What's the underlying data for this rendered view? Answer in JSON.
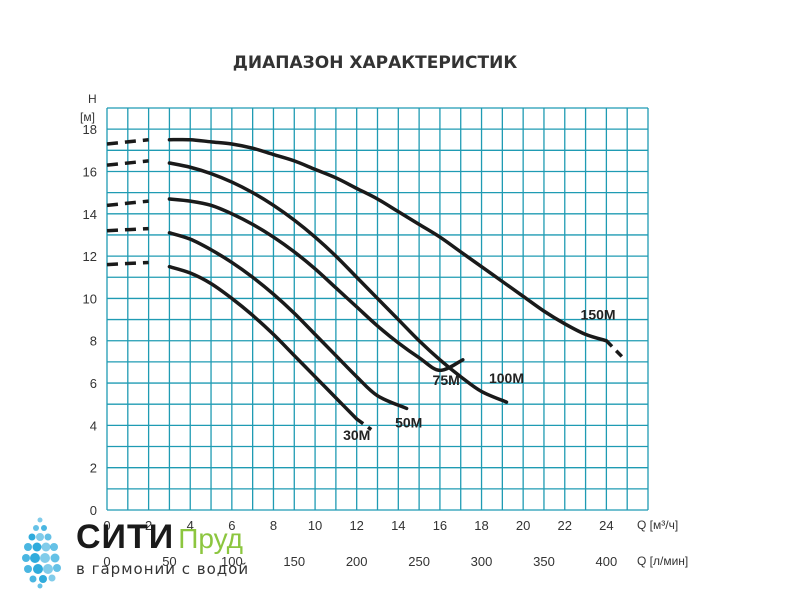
{
  "chart_data": {
    "type": "line",
    "title": "ДИАПАЗОН ХАРАКТЕРИСТИК",
    "ylabel_line1": "H",
    "ylabel_line2": "[м]",
    "xlabel": "Q [м³/ч]",
    "x2label": "Q [л/мин]",
    "xlim": [
      0,
      26
    ],
    "ylim": [
      0,
      19
    ],
    "x_ticks": [
      0,
      2,
      4,
      6,
      8,
      10,
      12,
      14,
      16,
      18,
      20,
      22,
      24
    ],
    "y_ticks": [
      0,
      2,
      4,
      6,
      8,
      10,
      12,
      14,
      16,
      18
    ],
    "x2_ticks": [
      {
        "label": "0",
        "x": 0
      },
      {
        "label": "50",
        "x": 3
      },
      {
        "label": "100",
        "x": 6
      },
      {
        "label": "150",
        "x": 9
      },
      {
        "label": "200",
        "x": 12
      },
      {
        "label": "250",
        "x": 15
      },
      {
        "label": "300",
        "x": 18
      },
      {
        "label": "350",
        "x": 21
      },
      {
        "label": "400",
        "x": 24
      }
    ],
    "grid": true,
    "series": [
      {
        "name": "30M",
        "dashed_start": [
          [
            0,
            11.6
          ],
          [
            2,
            11.7
          ]
        ],
        "solid": [
          [
            3,
            11.5
          ],
          [
            4,
            11.2
          ],
          [
            5,
            10.7
          ],
          [
            6,
            10.0
          ],
          [
            7,
            9.2
          ],
          [
            8,
            8.3
          ],
          [
            9,
            7.3
          ],
          [
            10,
            6.3
          ],
          [
            11,
            5.3
          ],
          [
            12,
            4.3
          ]
        ],
        "dashed_end": [
          [
            12,
            4.3
          ],
          [
            12.7,
            3.8
          ]
        ]
      },
      {
        "name": "50M",
        "dashed_start": [
          [
            0,
            13.2
          ],
          [
            2,
            13.3
          ]
        ],
        "solid": [
          [
            3,
            13.1
          ],
          [
            4,
            12.8
          ],
          [
            5,
            12.3
          ],
          [
            6,
            11.7
          ],
          [
            7,
            11.0
          ],
          [
            8,
            10.2
          ],
          [
            9,
            9.3
          ],
          [
            10,
            8.3
          ],
          [
            11,
            7.3
          ],
          [
            12,
            6.3
          ],
          [
            13,
            5.4
          ],
          [
            14.4,
            4.8
          ]
        ]
      },
      {
        "name": "75M",
        "dashed_start": [
          [
            0,
            14.4
          ],
          [
            2,
            14.6
          ]
        ],
        "solid": [
          [
            3,
            14.7
          ],
          [
            4,
            14.6
          ],
          [
            5,
            14.4
          ],
          [
            6,
            14.0
          ],
          [
            7,
            13.5
          ],
          [
            8,
            12.9
          ],
          [
            9,
            12.2
          ],
          [
            10,
            11.4
          ],
          [
            11,
            10.5
          ],
          [
            12,
            9.6
          ],
          [
            13,
            8.7
          ],
          [
            14,
            7.9
          ],
          [
            15,
            7.2
          ],
          [
            16,
            6.6
          ],
          [
            17.1,
            7.1
          ]
        ]
      },
      {
        "name": "100M",
        "dashed_start": [
          [
            0,
            16.3
          ],
          [
            2,
            16.5
          ]
        ],
        "solid": [
          [
            3,
            16.4
          ],
          [
            4,
            16.2
          ],
          [
            5,
            15.9
          ],
          [
            6,
            15.5
          ],
          [
            7,
            15.0
          ],
          [
            8,
            14.4
          ],
          [
            9,
            13.7
          ],
          [
            10,
            12.9
          ],
          [
            11,
            12.0
          ],
          [
            12,
            11.0
          ],
          [
            13,
            10.0
          ],
          [
            14,
            9.0
          ],
          [
            15,
            8.0
          ],
          [
            16,
            7.1
          ],
          [
            17,
            6.3
          ],
          [
            18,
            5.6
          ],
          [
            19.2,
            5.1
          ]
        ]
      },
      {
        "name": "150M",
        "dashed_start": [
          [
            0,
            17.3
          ],
          [
            2,
            17.5
          ]
        ],
        "solid": [
          [
            3,
            17.5
          ],
          [
            4,
            17.5
          ],
          [
            5,
            17.4
          ],
          [
            6,
            17.3
          ],
          [
            7,
            17.1
          ],
          [
            8,
            16.8
          ],
          [
            9,
            16.5
          ],
          [
            10,
            16.1
          ],
          [
            11,
            15.7
          ],
          [
            12,
            15.2
          ],
          [
            13,
            14.7
          ],
          [
            14,
            14.1
          ],
          [
            15,
            13.5
          ],
          [
            16,
            12.9
          ],
          [
            17,
            12.2
          ],
          [
            18,
            11.5
          ],
          [
            19,
            10.8
          ],
          [
            20,
            10.1
          ],
          [
            21,
            9.4
          ],
          [
            22,
            8.8
          ],
          [
            23,
            8.3
          ],
          [
            24,
            8.0
          ]
        ],
        "dashed_end": [
          [
            24,
            8.0
          ],
          [
            24.8,
            7.2
          ]
        ]
      }
    ],
    "labels": [
      {
        "text": "30M",
        "x": 12.0,
        "y": 3.3
      },
      {
        "text": "50M",
        "x": 14.5,
        "y": 3.9
      },
      {
        "text": "75M",
        "x": 16.3,
        "y": 5.9
      },
      {
        "text": "100M",
        "x": 19.2,
        "y": 6.0
      },
      {
        "text": "150M",
        "x": 23.6,
        "y": 9.0
      }
    ],
    "colors": {
      "grid": "#1f9bb3",
      "curve": "#1a1a1a",
      "axis_text": "#333333"
    }
  },
  "branding": {
    "name_main": "СИТИ",
    "name_accent": "Пруд",
    "slogan": "в гармонии с водой",
    "logo_icon": "water-droplet-icon",
    "colors": {
      "main": "#1a1a1a",
      "accent": "#8cc63f",
      "droplets": "#1aa3d9"
    }
  }
}
